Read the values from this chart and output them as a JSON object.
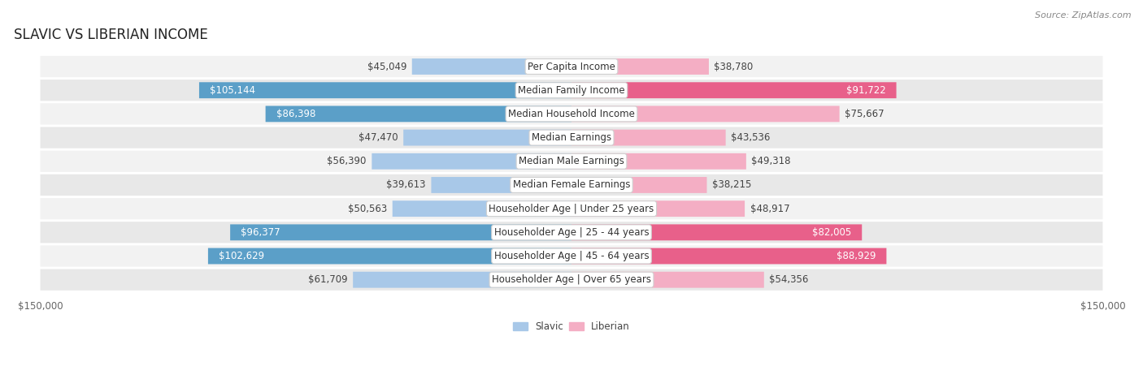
{
  "title": "SLAVIC VS LIBERIAN INCOME",
  "source": "Source: ZipAtlas.com",
  "categories": [
    "Per Capita Income",
    "Median Family Income",
    "Median Household Income",
    "Median Earnings",
    "Median Male Earnings",
    "Median Female Earnings",
    "Householder Age | Under 25 years",
    "Householder Age | 25 - 44 years",
    "Householder Age | 45 - 64 years",
    "Householder Age | Over 65 years"
  ],
  "slavic_values": [
    45049,
    105144,
    86398,
    47470,
    56390,
    39613,
    50563,
    96377,
    102629,
    61709
  ],
  "liberian_values": [
    38780,
    91722,
    75667,
    43536,
    49318,
    38215,
    48917,
    82005,
    88929,
    54356
  ],
  "slavic_labels": [
    "$45,049",
    "$105,144",
    "$86,398",
    "$47,470",
    "$56,390",
    "$39,613",
    "$50,563",
    "$96,377",
    "$102,629",
    "$61,709"
  ],
  "liberian_labels": [
    "$38,780",
    "$91,722",
    "$75,667",
    "$43,536",
    "$49,318",
    "$38,215",
    "$48,917",
    "$82,005",
    "$88,929",
    "$54,356"
  ],
  "slavic_color_light": "#a8c8e8",
  "slavic_color_bold": "#5b9fc8",
  "liberian_color_light": "#f4aec4",
  "liberian_color_bold": "#e8608a",
  "max_value": 150000,
  "bg_color": "#ffffff",
  "row_bg_even": "#f2f2f2",
  "row_bg_odd": "#e8e8e8",
  "bold_threshold": 80000,
  "label_fontsize": 8.5,
  "cat_fontsize": 8.5,
  "title_fontsize": 12,
  "source_fontsize": 8
}
